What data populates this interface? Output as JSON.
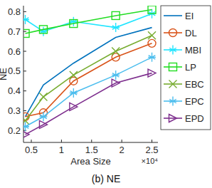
{
  "chart_data": {
    "type": "line",
    "title": "(b) NE",
    "x_label": "Area Size",
    "y_label": "NE",
    "annotations": [
      "×10⁴"
    ],
    "x": [
      0.4,
      0.7,
      1.2,
      1.9,
      2.5
    ],
    "xlim": [
      0.37,
      2.6
    ],
    "xticks": [
      0.5,
      1,
      1.5,
      2,
      2.5
    ],
    "ylim": [
      0.14,
      0.83
    ],
    "yticks": [
      0.2,
      0.3,
      0.4,
      0.5,
      0.6,
      0.7,
      0.8
    ],
    "grid": false,
    "legend": "right",
    "series": [
      {
        "name": "EI",
        "color": "#0072bd",
        "marker": "none",
        "line_style": "solid",
        "values": [
          0.27,
          0.43,
          0.54,
          0.67,
          0.72
        ]
      },
      {
        "name": "DL",
        "color": "#d95319",
        "marker": "circle",
        "line_style": "solid",
        "values": [
          0.27,
          0.29,
          0.45,
          0.57,
          0.64
        ]
      },
      {
        "name": "MBI",
        "color": "#22e5ff",
        "marker": "asterisk",
        "line_style": "solid",
        "values": [
          0.76,
          0.7,
          0.75,
          0.72,
          0.79
        ]
      },
      {
        "name": "LP",
        "color": "#22dd22",
        "marker": "square",
        "line_style": "solid",
        "values": [
          0.69,
          0.71,
          0.74,
          0.78,
          0.81
        ]
      },
      {
        "name": "EBC",
        "color": "#77ac30",
        "marker": "x",
        "line_style": "solid",
        "values": [
          0.25,
          0.37,
          0.48,
          0.6,
          0.68
        ]
      },
      {
        "name": "EPC",
        "color": "#4dbeee",
        "marker": "asterisk",
        "line_style": "solid",
        "values": [
          0.22,
          0.27,
          0.39,
          0.48,
          0.57
        ]
      },
      {
        "name": "EPD",
        "color": "#7e2f8e",
        "marker": "triangle-right",
        "line_style": "solid",
        "values": [
          0.18,
          0.23,
          0.32,
          0.44,
          0.49
        ]
      }
    ]
  }
}
